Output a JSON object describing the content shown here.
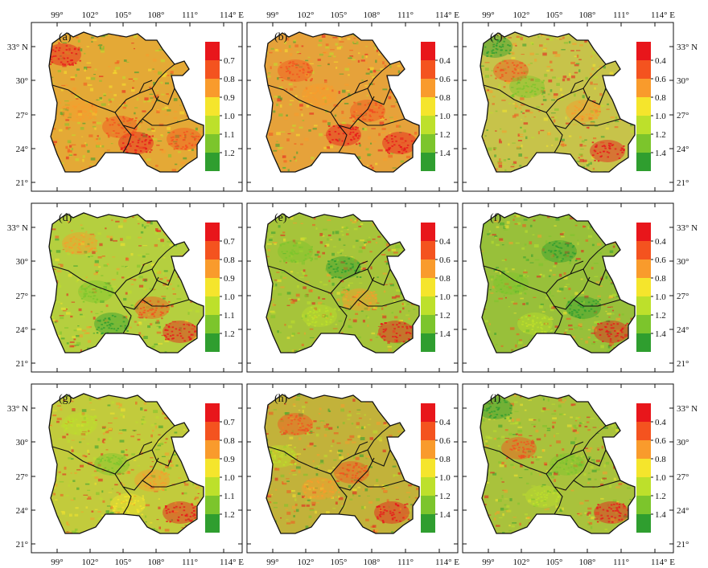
{
  "figure": {
    "lon_ticks": [
      "99°",
      "102°",
      "105°",
      "108°",
      "111°",
      "114° E"
    ],
    "lat_ticks": [
      "33° N",
      "30°",
      "27°",
      "24°",
      "21°"
    ],
    "legend_a": {
      "labels": [
        "0.7",
        "0.8",
        "0.9",
        "1.0",
        "1.1",
        "1.2"
      ],
      "colors": [
        "#e8161b",
        "#f4531f",
        "#f99b2c",
        "#f5e52c",
        "#bde02b",
        "#7cc52c",
        "#2f9e2f"
      ]
    },
    "legend_b": {
      "labels": [
        "0.4",
        "0.6",
        "0.8",
        "1.0",
        "1.2",
        "1.4"
      ],
      "colors": [
        "#e8161b",
        "#f4531f",
        "#f99b2c",
        "#f5e52c",
        "#bde02b",
        "#7cc52c",
        "#2f9e2f"
      ]
    },
    "panels": [
      {
        "label": "(a)",
        "legend": "legend_a",
        "tint": "#e4a936"
      },
      {
        "label": "(b)",
        "legend": "legend_b",
        "tint": "#e6a23a"
      },
      {
        "label": "(c)",
        "legend": "legend_b",
        "tint": "#c7c34a"
      },
      {
        "label": "(d)",
        "legend": "legend_a",
        "tint": "#b5cf3f"
      },
      {
        "label": "(e)",
        "legend": "legend_b",
        "tint": "#a6c43a"
      },
      {
        "label": "(f)",
        "legend": "legend_b",
        "tint": "#98c03a"
      },
      {
        "label": "(g)",
        "legend": "legend_a",
        "tint": "#c2cb3c"
      },
      {
        "label": "(h)",
        "legend": "legend_b",
        "tint": "#c2b23a"
      },
      {
        "label": "(i)",
        "legend": "legend_b",
        "tint": "#a9c23c"
      }
    ]
  }
}
